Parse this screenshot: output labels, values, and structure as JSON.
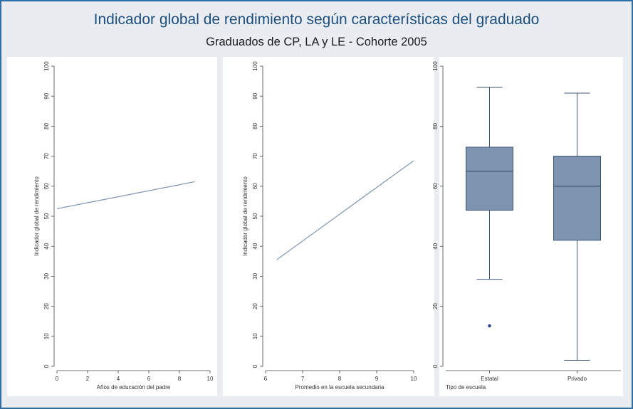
{
  "title": "Indicador global de rendimiento según características del graduado",
  "subtitle": "Graduados de CP, LA y LE - Cohorte 2005",
  "colors": {
    "frame": "#2f6fa3",
    "background": "#e9edf2",
    "title": "#1e4f7c",
    "line": "#7f93ad",
    "box_fill": "#7d93b0",
    "box_stroke": "#3a5272",
    "outlier": "#1f3d8a"
  },
  "chart_data": [
    {
      "type": "line",
      "xlabel": "Años de educación del padre",
      "ylabel": "Indicador global de rendimiento",
      "xlim": [
        0,
        10
      ],
      "ylim": [
        0,
        100
      ],
      "xticks": [
        "0",
        "2",
        "4",
        "6",
        "8",
        "10"
      ],
      "yticks": [
        "0",
        "10",
        "20",
        "30",
        "40",
        "50",
        "60",
        "70",
        "80",
        "90",
        "100"
      ],
      "x": [
        0,
        9
      ],
      "y": [
        52.5,
        61.5
      ]
    },
    {
      "type": "line",
      "xlabel": "Promedio en la escuela secundaria",
      "ylabel": "Indicador global de rendimiento",
      "xlim": [
        6,
        10
      ],
      "ylim": [
        0,
        100
      ],
      "xticks": [
        "6",
        "7",
        "8",
        "9",
        "10"
      ],
      "yticks": [
        "0",
        "10",
        "20",
        "30",
        "40",
        "50",
        "60",
        "70",
        "80",
        "90",
        "100"
      ],
      "x": [
        6.3,
        10
      ],
      "y": [
        35.5,
        68.5
      ]
    },
    {
      "type": "box",
      "xlabel": "Tipo de escuela",
      "ylim": [
        0,
        100
      ],
      "yticks": [
        "0",
        "20",
        "40",
        "60",
        "80",
        "100"
      ],
      "categories": [
        "Estatal",
        "Privado"
      ],
      "boxes": [
        {
          "whisker_low": 29,
          "q1": 52,
          "median": 65,
          "q3": 73,
          "whisker_high": 93,
          "outliers": [
            13.5
          ]
        },
        {
          "whisker_low": 2,
          "q1": 42,
          "median": 60,
          "q3": 70,
          "whisker_high": 91,
          "outliers": []
        }
      ]
    }
  ]
}
